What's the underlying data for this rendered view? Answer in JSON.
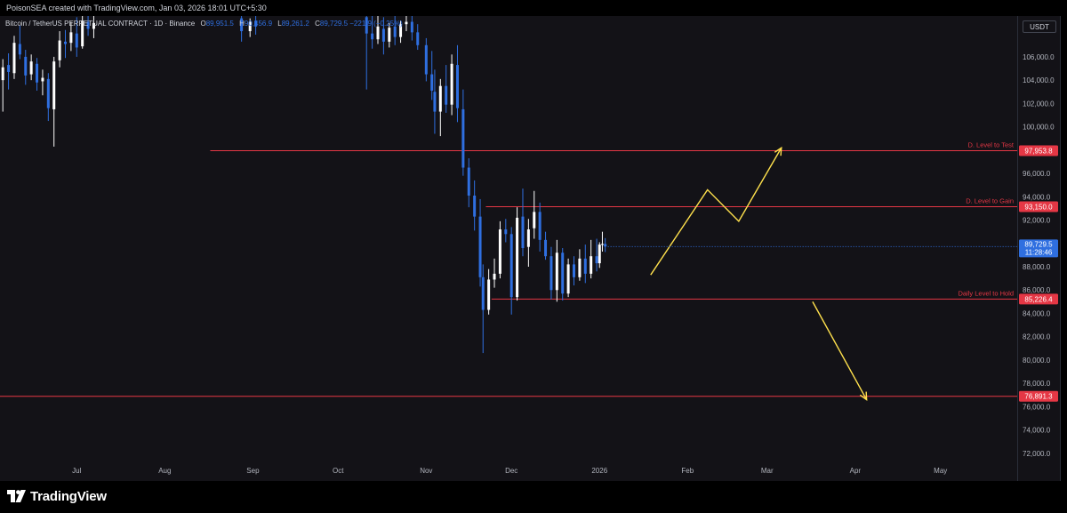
{
  "header": {
    "attribution": "PoisonSEA created with TradingView.com, Jan 03, 2026 18:01 UTC+5:30"
  },
  "legend": {
    "symbol": "Bitcoin / TetherUS PERPETUAL CONTRACT · 1D · Binance",
    "open_key": "O",
    "open": "89,951.5",
    "high_key": "H",
    "high": "90,456.9",
    "low_key": "L",
    "low": "89,261.2",
    "close_key": "C",
    "close": "89,729.5",
    "change": "−221.9 (−0.25%)"
  },
  "price_axis": {
    "currency": "USDT",
    "current_price": "89,729.5",
    "countdown": "11:28:46"
  },
  "footer": {
    "brand": "TradingView"
  },
  "colors": {
    "background": "#131217",
    "bull_candle": "#ffffff",
    "bear_candle": "#2f6fe0",
    "level_line": "#e53745",
    "projection": "#ffe14d",
    "current_price_tag": "#2f6fe0"
  },
  "chart_data": {
    "type": "candlestick",
    "title": "Bitcoin / TetherUS PERPETUAL CONTRACT · 1D · Binance",
    "ylim": [
      71000,
      109500
    ],
    "yticks": [
      72000,
      74000,
      76000,
      78000,
      80000,
      82000,
      84000,
      86000,
      88000,
      90000,
      92000,
      94000,
      96000,
      98000,
      100000,
      102000,
      104000,
      106000
    ],
    "ytick_labels": [
      "72,000.0",
      "74,000.0",
      "76,000.0",
      "78,000.0",
      "80,000.0",
      "82,000.0",
      "84,000.0",
      "86,000.0",
      "88,000.0",
      "90,000.0",
      "92,000.0",
      "94,000.0",
      "96,000.0",
      "98,000.0",
      "100,000.0",
      "102,000.0",
      "104,000.0",
      "106,000.0"
    ],
    "x_range": [
      "2025-06-04",
      "2026-05-28"
    ],
    "xticks": [
      {
        "date": "2025-07-01",
        "label": "Jul"
      },
      {
        "date": "2025-08-01",
        "label": "Aug"
      },
      {
        "date": "2025-09-01",
        "label": "Sep"
      },
      {
        "date": "2025-10-01",
        "label": "Oct"
      },
      {
        "date": "2025-11-01",
        "label": "Nov"
      },
      {
        "date": "2025-12-01",
        "label": "Dec"
      },
      {
        "date": "2026-01-01",
        "label": "2026"
      },
      {
        "date": "2026-02-01",
        "label": "Feb"
      },
      {
        "date": "2026-03-01",
        "label": "Mar"
      },
      {
        "date": "2026-04-01",
        "label": "Apr"
      },
      {
        "date": "2026-05-01",
        "label": "May"
      }
    ],
    "candles": [
      {
        "d": "2025-06-05",
        "o": 104000,
        "h": 105800,
        "l": 101300,
        "c": 105100
      },
      {
        "d": "2025-06-07",
        "o": 105300,
        "h": 106300,
        "l": 103200,
        "c": 104700
      },
      {
        "d": "2025-06-09",
        "o": 104600,
        "h": 107800,
        "l": 104100,
        "c": 107200
      },
      {
        "d": "2025-06-11",
        "o": 107100,
        "h": 108700,
        "l": 105800,
        "c": 106200
      },
      {
        "d": "2025-06-13",
        "o": 106000,
        "h": 106600,
        "l": 103600,
        "c": 104400
      },
      {
        "d": "2025-06-15",
        "o": 104500,
        "h": 106200,
        "l": 104000,
        "c": 105600
      },
      {
        "d": "2025-06-17",
        "o": 105400,
        "h": 105900,
        "l": 103100,
        "c": 103800
      },
      {
        "d": "2025-06-19",
        "o": 103900,
        "h": 104900,
        "l": 102700,
        "c": 104200
      },
      {
        "d": "2025-06-21",
        "o": 104100,
        "h": 104600,
        "l": 100500,
        "c": 101600
      },
      {
        "d": "2025-06-23",
        "o": 101500,
        "h": 106000,
        "l": 98300,
        "c": 105600
      },
      {
        "d": "2025-06-25",
        "o": 105700,
        "h": 108200,
        "l": 105100,
        "c": 107400
      },
      {
        "d": "2025-06-27",
        "o": 107300,
        "h": 108300,
        "l": 105900,
        "c": 107100
      },
      {
        "d": "2025-06-29",
        "o": 107200,
        "h": 109000,
        "l": 106500,
        "c": 108100
      },
      {
        "d": "2025-07-01",
        "o": 108000,
        "h": 109400,
        "l": 106000,
        "c": 106800
      },
      {
        "d": "2025-07-03",
        "o": 106900,
        "h": 109500,
        "l": 106700,
        "c": 109100
      },
      {
        "d": "2025-07-05",
        "o": 109000,
        "h": 109500,
        "l": 107800,
        "c": 108400
      },
      {
        "d": "2025-07-07",
        "o": 108400,
        "h": 109500,
        "l": 107600,
        "c": 108900
      },
      {
        "d": "2025-08-28",
        "o": 109300,
        "h": 109500,
        "l": 107300,
        "c": 108200
      },
      {
        "d": "2025-08-31",
        "o": 108200,
        "h": 109300,
        "l": 107700,
        "c": 109000
      },
      {
        "d": "2025-09-02",
        "o": 109100,
        "h": 109500,
        "l": 107900,
        "c": 108600
      },
      {
        "d": "2025-10-11",
        "o": 109400,
        "h": 109500,
        "l": 103200,
        "c": 108000
      },
      {
        "d": "2025-10-13",
        "o": 108000,
        "h": 109500,
        "l": 106700,
        "c": 107500
      },
      {
        "d": "2025-10-15",
        "o": 107500,
        "h": 109500,
        "l": 107100,
        "c": 108600
      },
      {
        "d": "2025-10-17",
        "o": 108400,
        "h": 109400,
        "l": 106200,
        "c": 107300
      },
      {
        "d": "2025-10-19",
        "o": 107300,
        "h": 108900,
        "l": 106800,
        "c": 108500
      },
      {
        "d": "2025-10-21",
        "o": 108600,
        "h": 109500,
        "l": 107000,
        "c": 107700
      },
      {
        "d": "2025-10-23",
        "o": 107700,
        "h": 109100,
        "l": 107200,
        "c": 108800
      },
      {
        "d": "2025-10-25",
        "o": 108800,
        "h": 109500,
        "l": 108200,
        "c": 109000
      },
      {
        "d": "2025-10-27",
        "o": 109000,
        "h": 109500,
        "l": 107400,
        "c": 108100
      },
      {
        "d": "2025-10-29",
        "o": 108100,
        "h": 108800,
        "l": 106600,
        "c": 107000
      },
      {
        "d": "2025-11-01",
        "o": 107000,
        "h": 107600,
        "l": 103900,
        "c": 104500
      },
      {
        "d": "2025-11-03",
        "o": 104500,
        "h": 106500,
        "l": 102300,
        "c": 103100
      },
      {
        "d": "2025-11-04",
        "o": 103000,
        "h": 104900,
        "l": 99400,
        "c": 101300
      },
      {
        "d": "2025-11-06",
        "o": 101300,
        "h": 104100,
        "l": 99200,
        "c": 103500
      },
      {
        "d": "2025-11-08",
        "o": 103500,
        "h": 105300,
        "l": 101200,
        "c": 101900
      },
      {
        "d": "2025-11-10",
        "o": 101900,
        "h": 106200,
        "l": 101000,
        "c": 105400
      },
      {
        "d": "2025-11-12",
        "o": 105300,
        "h": 107000,
        "l": 100400,
        "c": 101600
      },
      {
        "d": "2025-11-14",
        "o": 101500,
        "h": 103200,
        "l": 95800,
        "c": 96500
      },
      {
        "d": "2025-11-16",
        "o": 96500,
        "h": 97300,
        "l": 93100,
        "c": 94100
      },
      {
        "d": "2025-11-18",
        "o": 94100,
        "h": 95400,
        "l": 91100,
        "c": 92300
      },
      {
        "d": "2025-11-20",
        "o": 92300,
        "h": 93800,
        "l": 86300,
        "c": 87100
      },
      {
        "d": "2025-11-21",
        "o": 87100,
        "h": 88200,
        "l": 80600,
        "c": 84300
      },
      {
        "d": "2025-11-23",
        "o": 84300,
        "h": 87800,
        "l": 83900,
        "c": 86900
      },
      {
        "d": "2025-11-25",
        "o": 86900,
        "h": 88700,
        "l": 86200,
        "c": 87400
      },
      {
        "d": "2025-11-27",
        "o": 87400,
        "h": 91900,
        "l": 87000,
        "c": 91200
      },
      {
        "d": "2025-11-29",
        "o": 91200,
        "h": 92100,
        "l": 90100,
        "c": 90800
      },
      {
        "d": "2025-12-01",
        "o": 90800,
        "h": 91400,
        "l": 83900,
        "c": 85400
      },
      {
        "d": "2025-12-03",
        "o": 85400,
        "h": 93100,
        "l": 85100,
        "c": 92200
      },
      {
        "d": "2025-12-05",
        "o": 92300,
        "h": 94700,
        "l": 88900,
        "c": 89600
      },
      {
        "d": "2025-12-07",
        "o": 89700,
        "h": 92100,
        "l": 88000,
        "c": 91200
      },
      {
        "d": "2025-12-09",
        "o": 91300,
        "h": 94500,
        "l": 90400,
        "c": 92700
      },
      {
        "d": "2025-12-11",
        "o": 92700,
        "h": 93500,
        "l": 89300,
        "c": 90300
      },
      {
        "d": "2025-12-13",
        "o": 90300,
        "h": 91000,
        "l": 88600,
        "c": 88900
      },
      {
        "d": "2025-12-15",
        "o": 88900,
        "h": 89700,
        "l": 85200,
        "c": 86000
      },
      {
        "d": "2025-12-17",
        "o": 86000,
        "h": 90300,
        "l": 85000,
        "c": 89200
      },
      {
        "d": "2025-12-19",
        "o": 89200,
        "h": 89600,
        "l": 85100,
        "c": 85700
      },
      {
        "d": "2025-12-21",
        "o": 85700,
        "h": 88700,
        "l": 85400,
        "c": 88200
      },
      {
        "d": "2025-12-23",
        "o": 88200,
        "h": 88900,
        "l": 86400,
        "c": 87100
      },
      {
        "d": "2025-12-25",
        "o": 87100,
        "h": 89500,
        "l": 86800,
        "c": 88700
      },
      {
        "d": "2025-12-27",
        "o": 88700,
        "h": 89900,
        "l": 86600,
        "c": 87400
      },
      {
        "d": "2025-12-29",
        "o": 87400,
        "h": 90300,
        "l": 87000,
        "c": 88900
      },
      {
        "d": "2025-12-31",
        "o": 88900,
        "h": 90400,
        "l": 87600,
        "c": 88300
      },
      {
        "d": "2026-01-01",
        "o": 88300,
        "h": 90100,
        "l": 87900,
        "c": 89900
      },
      {
        "d": "2026-01-02",
        "o": 89900,
        "h": 91000,
        "l": 89300,
        "c": 89951.5
      },
      {
        "d": "2026-01-03",
        "o": 89951.5,
        "h": 90456.9,
        "l": 89261.2,
        "c": 89729.5
      }
    ],
    "levels": [
      {
        "label": "D. Level to Test",
        "price": 97953.8,
        "price_label": "97,953.8",
        "start": "2025-08-17"
      },
      {
        "label": "D. Level to Gain",
        "price": 93150.0,
        "price_label": "93,150.0",
        "start": "2025-11-22"
      },
      {
        "label": "Daily Level to Hold",
        "price": 85226.4,
        "price_label": "85,226.4",
        "start": "2025-11-24"
      },
      {
        "label": "",
        "price": 76891.3,
        "price_label": "76,891.3",
        "start": "2025-06-04"
      }
    ],
    "projections": [
      {
        "name": "bullish",
        "points": [
          [
            "2026-01-19",
            87300
          ],
          [
            "2026-02-08",
            94600
          ],
          [
            "2026-02-19",
            91900
          ],
          [
            "2026-03-06",
            98200
          ]
        ]
      },
      {
        "name": "bearish",
        "points": [
          [
            "2026-03-17",
            85000
          ],
          [
            "2026-04-05",
            76600
          ]
        ]
      }
    ]
  }
}
